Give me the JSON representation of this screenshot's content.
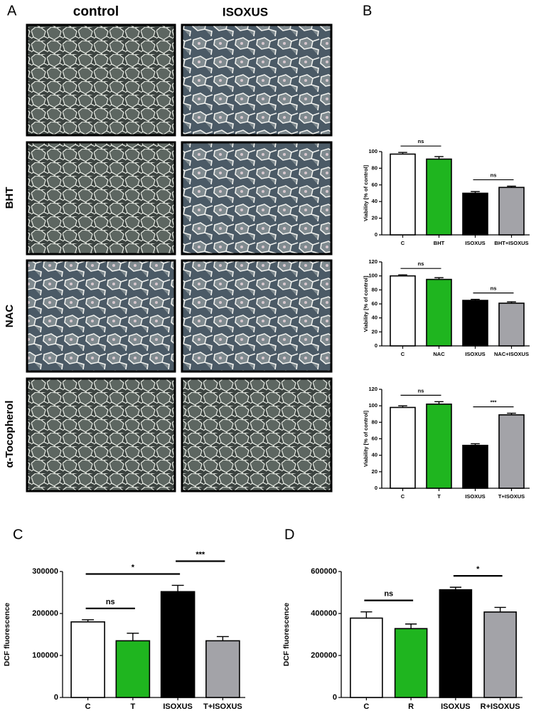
{
  "figure": {
    "panel_labels": [
      "A",
      "B",
      "C",
      "D"
    ],
    "micrographs": {
      "columns": [
        "control",
        "ISOXUS"
      ],
      "rows": [
        "BHT",
        "NAC",
        "α-Tocopherol"
      ]
    }
  },
  "chart_data": [
    {
      "type": "bar",
      "y_label": "Viability [% of control]",
      "categories": [
        "C",
        "BHT",
        "ISOXUS",
        "BHT+ISOXUS"
      ],
      "values": [
        97,
        91,
        50,
        57
      ],
      "errors": [
        2,
        3,
        2,
        1.5
      ],
      "colors": [
        "#ffffff",
        "#1fb51f",
        "#000000",
        "#a3a3a8"
      ],
      "ylim": [
        0,
        100
      ],
      "yticks": [
        0,
        20,
        40,
        60,
        80,
        100
      ],
      "annotations": [
        {
          "text": "ns",
          "from": 0,
          "to": 1
        },
        {
          "text": "ns",
          "from": 2,
          "to": 3
        }
      ]
    },
    {
      "type": "bar",
      "y_label": "Viability [% of control]",
      "categories": [
        "C",
        "NAC",
        "ISOXUS",
        "NAC+ISOXUS"
      ],
      "values": [
        100,
        95,
        65,
        61
      ],
      "errors": [
        1.5,
        2.5,
        1.5,
        2
      ],
      "colors": [
        "#ffffff",
        "#1fb51f",
        "#000000",
        "#a3a3a8"
      ],
      "ylim": [
        0,
        120
      ],
      "yticks": [
        0,
        20,
        40,
        60,
        80,
        100,
        120
      ],
      "annotations": [
        {
          "text": "ns",
          "from": 0,
          "to": 1
        },
        {
          "text": "ns",
          "from": 2,
          "to": 3
        }
      ]
    },
    {
      "type": "bar",
      "y_label": "Viability [% of control]",
      "categories": [
        "C",
        "T",
        "ISOXUS",
        "T+ISOXUS"
      ],
      "values": [
        98,
        102,
        52,
        89
      ],
      "errors": [
        2,
        3,
        2,
        2
      ],
      "colors": [
        "#ffffff",
        "#1fb51f",
        "#000000",
        "#a3a3a8"
      ],
      "ylim": [
        0,
        120
      ],
      "yticks": [
        0,
        20,
        40,
        60,
        80,
        100,
        120
      ],
      "annotations": [
        {
          "text": "ns",
          "from": 0,
          "to": 1
        },
        {
          "text": "***",
          "from": 2,
          "to": 3
        }
      ]
    },
    {
      "type": "bar",
      "y_label": "DCF fluorescence",
      "categories": [
        "C",
        "T",
        "ISOXUS",
        "T+ISOXUS"
      ],
      "values": [
        180000,
        135000,
        252000,
        135000
      ],
      "errors": [
        5000,
        18000,
        15000,
        10000
      ],
      "colors": [
        "#ffffff",
        "#1fb51f",
        "#000000",
        "#a3a3a8"
      ],
      "ylim": [
        0,
        300000
      ],
      "yticks": [
        0,
        100000,
        200000,
        300000
      ],
      "annotations": [
        {
          "text": "ns",
          "from": 0,
          "to": 1
        },
        {
          "text": "*",
          "from": 0,
          "to": 2
        },
        {
          "text": "***",
          "from": 2,
          "to": 3
        }
      ]
    },
    {
      "type": "bar",
      "y_label": "DCF fluorescence",
      "categories": [
        "C",
        "R",
        "ISOXUS",
        "R+ISOXUS"
      ],
      "values": [
        378000,
        328000,
        513000,
        407000
      ],
      "errors": [
        30000,
        22000,
        12000,
        22000
      ],
      "colors": [
        "#ffffff",
        "#1fb51f",
        "#000000",
        "#a3a3a8"
      ],
      "ylim": [
        0,
        600000
      ],
      "yticks": [
        0,
        200000,
        400000,
        600000
      ],
      "annotations": [
        {
          "text": "ns",
          "from": 0,
          "to": 1
        },
        {
          "text": "*",
          "from": 2,
          "to": 3
        }
      ]
    }
  ]
}
